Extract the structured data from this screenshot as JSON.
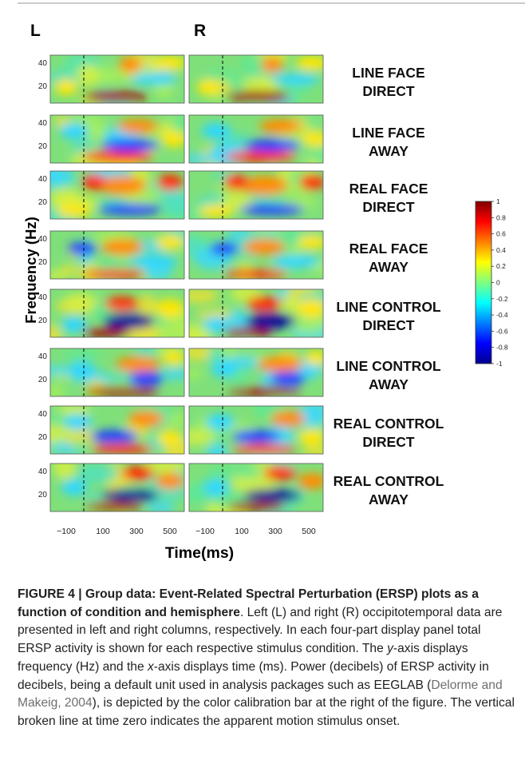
{
  "figure": {
    "hemisphere_labels": [
      "L",
      "R"
    ],
    "y_axis_label": "Frequency (Hz)",
    "x_axis_label": "Time(ms)",
    "y_ticks": [
      "40",
      "20"
    ],
    "x_ticks": [
      "−100",
      "100",
      "300",
      "500"
    ],
    "conditions": [
      [
        "LINE FACE",
        "DIRECT"
      ],
      [
        "LINE FACE",
        "AWAY"
      ],
      [
        "REAL FACE",
        "DIRECT"
      ],
      [
        "REAL FACE",
        "AWAY"
      ],
      [
        "LINE CONTROL",
        "DIRECT"
      ],
      [
        "LINE CONTROL",
        "AWAY"
      ],
      [
        "REAL CONTROL",
        "DIRECT"
      ],
      [
        "REAL CONTROL",
        "AWAY"
      ]
    ],
    "colorbar_ticks": [
      "1",
      "0.8",
      "0.6",
      "0.4",
      "0.2",
      "0",
      "-0.2",
      "-0.4",
      "-0.6",
      "-0.8",
      "-1"
    ]
  },
  "chart_data": {
    "type": "heatmap",
    "panels": "8 conditions x 2 hemispheres (L, R)",
    "ylabel": "Frequency (Hz)",
    "xlabel": "Time(ms)",
    "x_ticks": [
      -100,
      100,
      300,
      500
    ],
    "y_ticks": [
      20,
      40
    ],
    "stimulus_onset_ms": 0,
    "colorbar_range": [
      -1,
      1
    ]
  },
  "caption": {
    "title": "FIGURE 4 | Group data: Event-Related Spectral Perturbation (ERSP) plots as a function of condition and hemisphere",
    "text1": ". Left (L) and right (R) occipitotemporal data are presented in left and right columns, respectively. In each four-part display panel total ERSP activity is shown for each respective stimulus condition. The ",
    "y_italic": "y",
    "text2": "-axis displays frequency (Hz) and the ",
    "x_italic": "x",
    "text3": "-axis displays time (ms). Power (decibels) of ERSP activity in decibels, being a default unit used in analysis packages such as EEGLAB (",
    "citation": "Delorme and Makeig, 2004",
    "text4": "), is depicted by the color calibration bar at the right of the figure. The vertical broken line at time zero indicates the apparent motion stimulus onset."
  }
}
